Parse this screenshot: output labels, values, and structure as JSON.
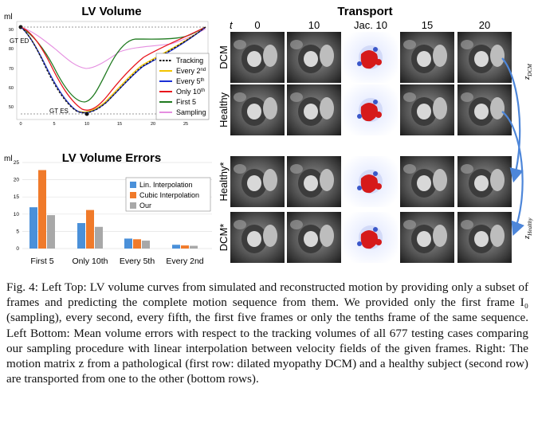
{
  "lv_volume": {
    "title": "LV Volume",
    "unit": "ml",
    "gt_ed_label": "GT ED",
    "gt_es_label": "GT ES",
    "y_ticks": [
      "90",
      "80",
      "70",
      "60",
      "50"
    ],
    "x_ticks": [
      "0",
      "5",
      "10",
      "15",
      "20",
      "25"
    ],
    "legend": [
      {
        "label": "Tracking",
        "sup": "",
        "color": "#111111",
        "dashed": true
      },
      {
        "label": "Every 2",
        "sup": "nd",
        "color": "#f2c400",
        "dashed": false
      },
      {
        "label": "Every 5",
        "sup": "th",
        "color": "#1a2fd6",
        "dashed": false
      },
      {
        "label": "Only 10",
        "sup": "th",
        "color": "#e8141c",
        "dashed": false
      },
      {
        "label": "First 5",
        "sup": "",
        "color": "#1f7a1f",
        "dashed": false
      },
      {
        "label": "Sampling",
        "sup": "",
        "color": "#e58ee0",
        "dashed": false
      }
    ]
  },
  "chart_data": {
    "type": "bar",
    "title": "LV Volume Errors",
    "ylabel": "ml",
    "ylim": [
      0,
      25
    ],
    "y_ticks": [
      0,
      5,
      10,
      15,
      20,
      25
    ],
    "categories": [
      "First 5",
      "Only 10th",
      "Every 5th",
      "Every 2nd"
    ],
    "series": [
      {
        "name": "Lin. Interpolation",
        "color": "#4a90d9",
        "values": [
          12.0,
          7.4,
          2.9,
          1.1
        ]
      },
      {
        "name": "Cubic Interpolation",
        "color": "#f07a2a",
        "values": [
          22.8,
          11.2,
          2.7,
          0.9
        ]
      },
      {
        "name": "Our",
        "color": "#a8a8a8",
        "values": [
          9.7,
          6.3,
          2.3,
          0.8
        ]
      }
    ],
    "legend_position": "top-right"
  },
  "transport": {
    "title": "Transport",
    "t_label": "t",
    "columns": [
      "0",
      "10",
      "Jac. 10",
      "15",
      "20"
    ],
    "rows": [
      "DCM",
      "Healthy",
      "Healthy*",
      "DCM*"
    ],
    "z_dcm": "z",
    "z_dcm_sub": "DCM",
    "z_healthy": "z",
    "z_healthy_sub": "Healthy"
  },
  "caption": {
    "label": "Fig. 4:",
    "text": "Left Top: LV volume curves from simulated and reconstructed motion by providing only a subset of frames and predicting the complete motion sequence from them. We provided only the first frame I₀ (sampling), every second, every fifth, the first five frames or only the tenths frame of the same sequence. Left Bottom: Mean volume errors with respect to the tracking volumes of all 677 testing cases comparing our sampling procedure with linear interpolation between velocity fields of the given frames. Right: The motion matrix z from a pathological (first row: dilated myopathy DCM) and a healthy subject (second row) are transported from one to the other (bottom rows)."
  }
}
